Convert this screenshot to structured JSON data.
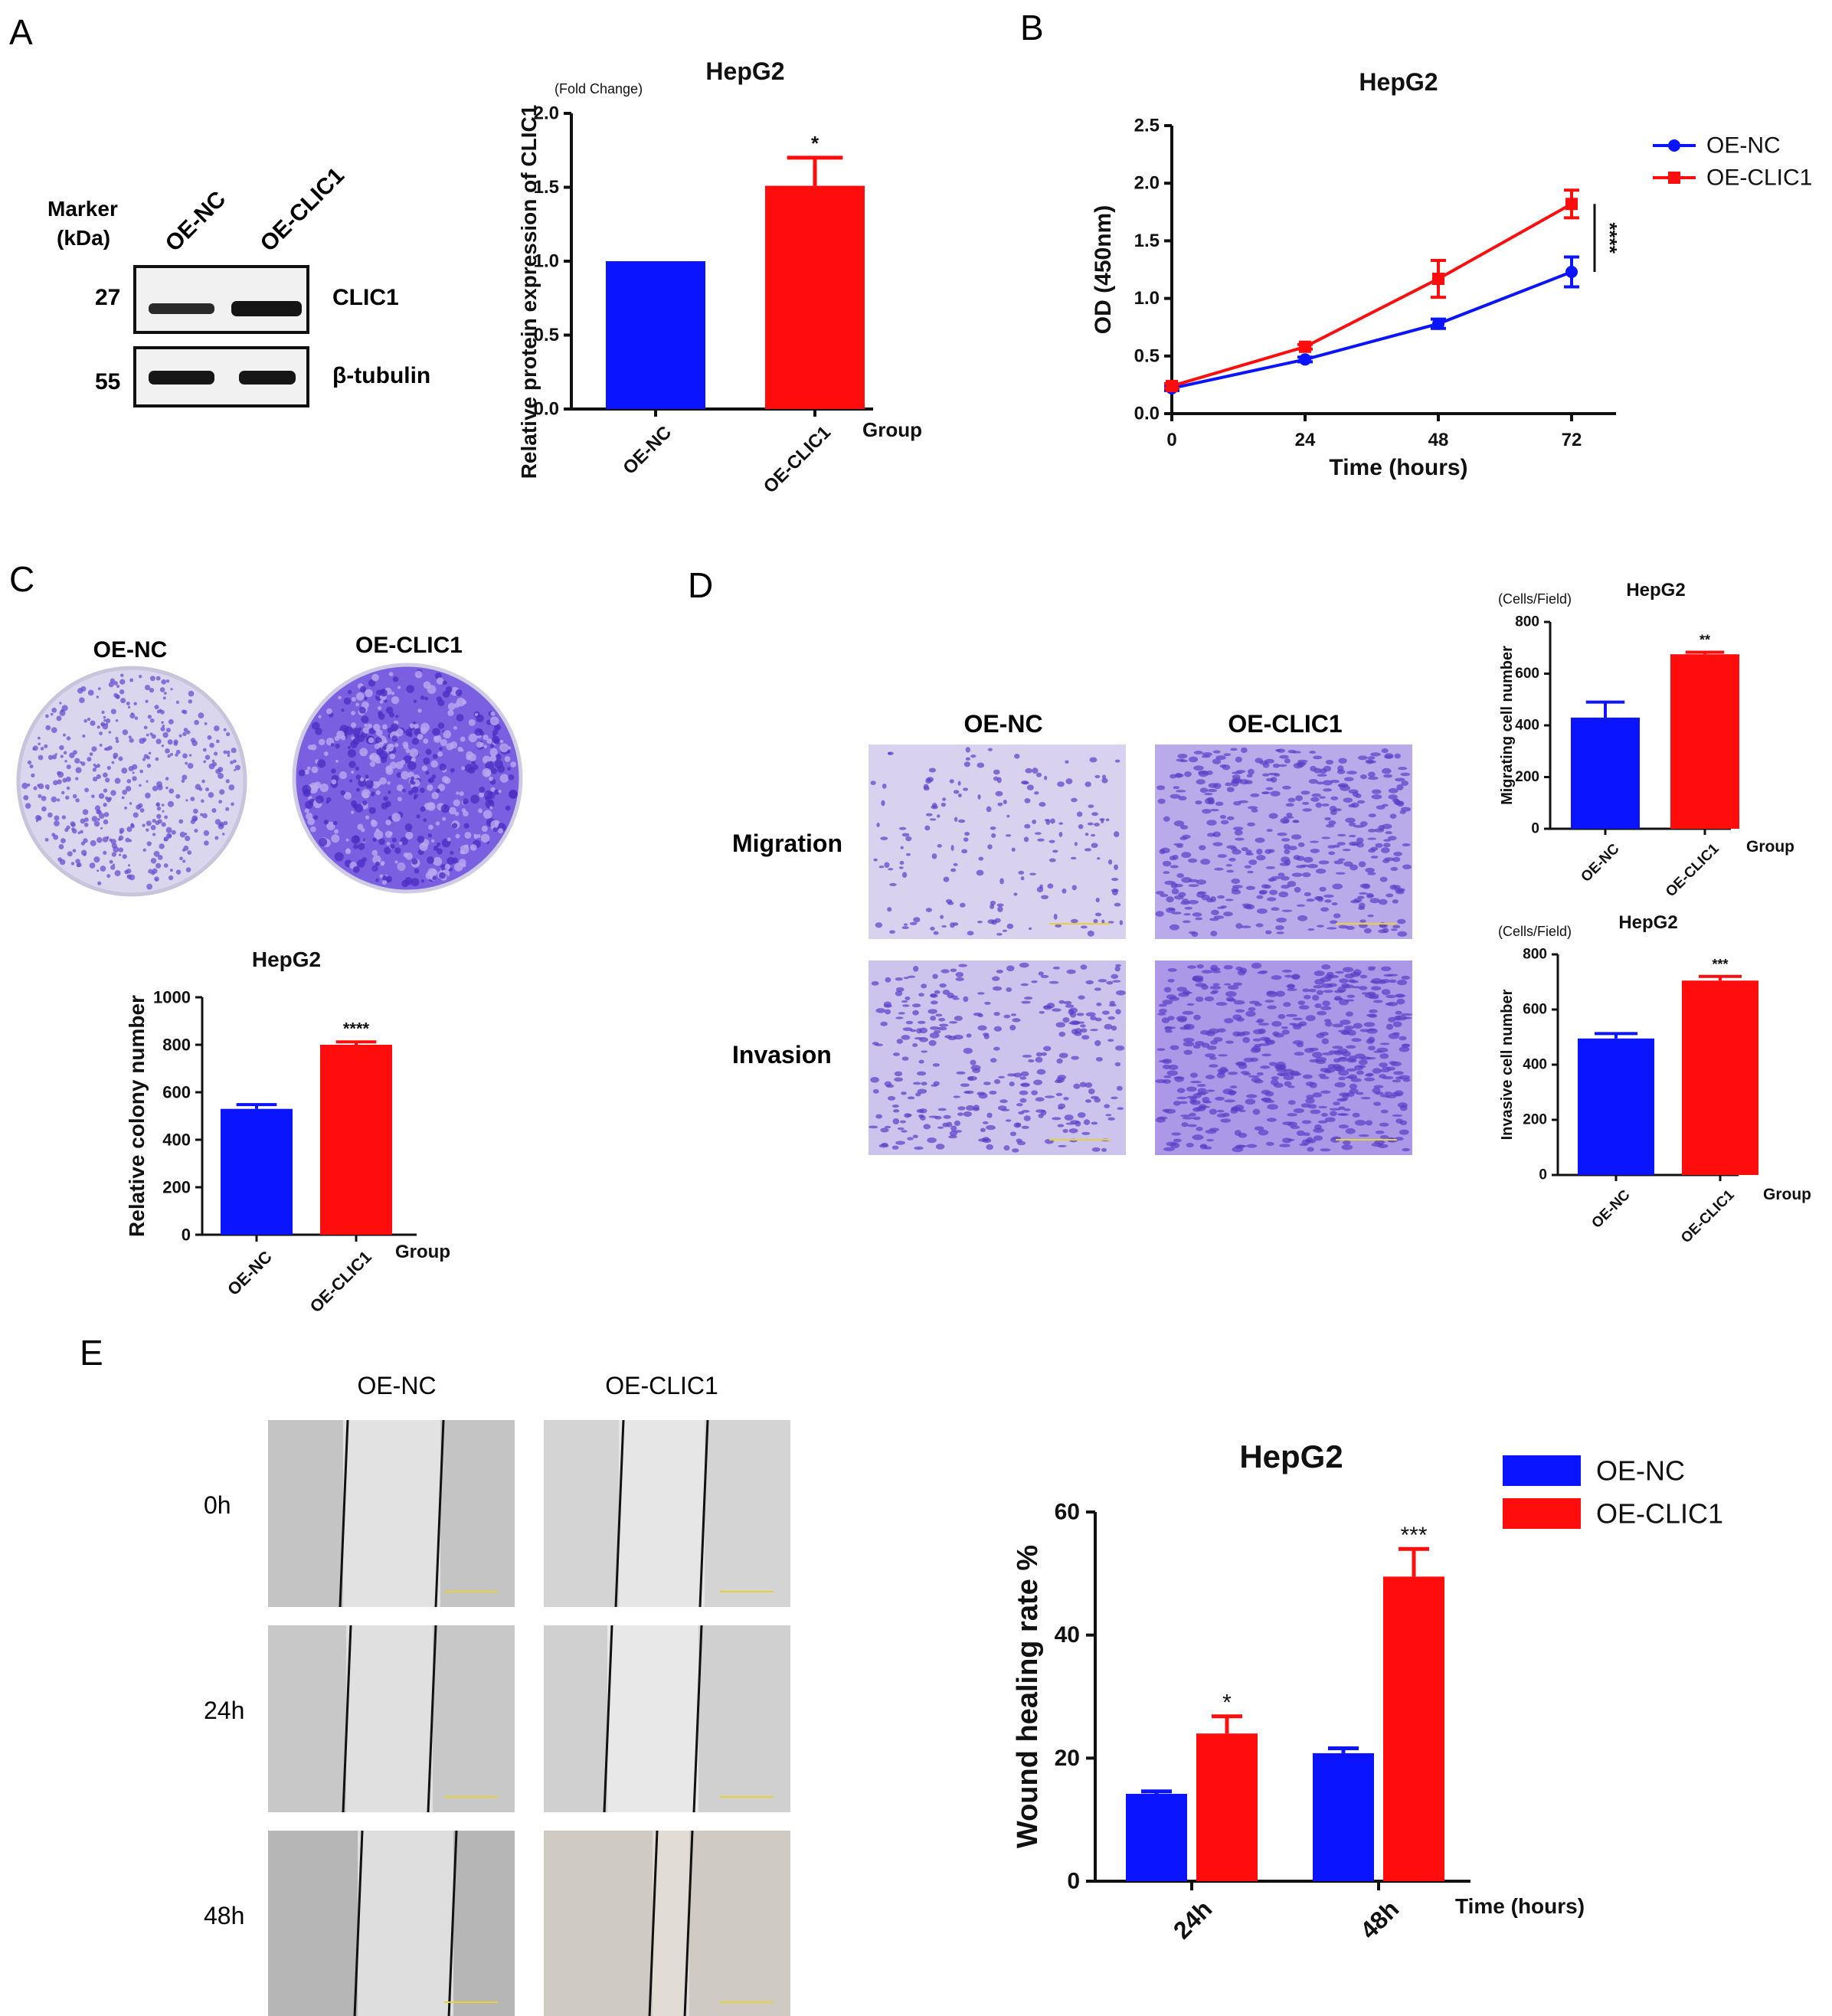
{
  "panel_labels": {
    "a": "A",
    "b": "B",
    "c": "C",
    "d": "D",
    "e": "E"
  },
  "colors": {
    "nc": "#0a14ff",
    "clic1": "#ff0d0d",
    "axis": "#111111",
    "gel_bg": "#f1f1f1",
    "band": "#1c1c1c",
    "crystal_violet": "#6a4fd2",
    "wound_bg": "#c9c9c9"
  },
  "western_blot": {
    "marker_label_1": "Marker",
    "marker_label_2": "(kDa)",
    "lanes": [
      "OE-NC",
      "OE-CLIC1"
    ],
    "rows": [
      {
        "kda": "27",
        "protein": "CLIC1"
      },
      {
        "kda": "55",
        "protein": "β-tubulin"
      }
    ]
  },
  "colony_images": {
    "labels": [
      "OE-NC",
      "OE-CLIC1"
    ]
  },
  "transwell_images": {
    "columns": [
      "OE-NC",
      "OE-CLIC1"
    ],
    "rows": [
      "Migration",
      "Invasion"
    ]
  },
  "wound_images": {
    "columns": [
      "OE-NC",
      "OE-CLIC1"
    ],
    "rows": [
      "0h",
      "24h",
      "48h"
    ]
  },
  "chart_data": [
    {
      "id": "a",
      "type": "bar",
      "title": "HepG2",
      "unit_label": "(Fold Change)",
      "ylabel": "Relative protein expression of CLIC1",
      "xlabel": "Group",
      "categories": [
        "OE-NC",
        "OE-CLIC1"
      ],
      "values": [
        1.0,
        1.51
      ],
      "errors": [
        0,
        0.19
      ],
      "significance": [
        "",
        "*"
      ],
      "ylim": [
        0,
        2.0
      ],
      "yticks": [
        "0.0",
        "0.5",
        "1.0",
        "1.5",
        "2.0"
      ]
    },
    {
      "id": "b",
      "type": "line",
      "title": "HepG2",
      "ylabel": "OD (450nm)",
      "xlabel": "Time (hours)",
      "x": [
        0,
        24,
        48,
        72
      ],
      "xticks": [
        "0",
        "24",
        "48",
        "72"
      ],
      "xlim": [
        0,
        80
      ],
      "ylim": [
        0,
        2.5
      ],
      "yticks": [
        "0.0",
        "0.5",
        "1.0",
        "1.5",
        "2.0",
        "2.5"
      ],
      "series": [
        {
          "name": "OE-NC",
          "values": [
            0.22,
            0.47,
            0.78,
            1.23
          ],
          "errors": [
            0.02,
            0.02,
            0.04,
            0.13
          ],
          "marker": "circle"
        },
        {
          "name": "OE-CLIC1",
          "values": [
            0.24,
            0.58,
            1.17,
            1.82
          ],
          "errors": [
            0.02,
            0.02,
            0.16,
            0.12
          ],
          "marker": "square"
        }
      ],
      "significance": "****",
      "legend": "top-right"
    },
    {
      "id": "c",
      "type": "bar",
      "title": "HepG2",
      "ylabel": "Relative colony number",
      "xlabel": "Group",
      "categories": [
        "OE-NC",
        "OE-CLIC1"
      ],
      "values": [
        530,
        800
      ],
      "errors": [
        18,
        12
      ],
      "significance": [
        "",
        "****"
      ],
      "ylim": [
        0,
        1000
      ],
      "yticks": [
        "0",
        "200",
        "400",
        "600",
        "800",
        "1000"
      ]
    },
    {
      "id": "d1",
      "type": "bar",
      "title": "HepG2",
      "unit_label": "(Cells/Field)",
      "ylabel": "Migrating cell number",
      "xlabel": "Group",
      "categories": [
        "OE-NC",
        "OE-CLIC1"
      ],
      "values": [
        430,
        675
      ],
      "errors": [
        60,
        8
      ],
      "significance": [
        "",
        "**"
      ],
      "ylim": [
        0,
        800
      ],
      "yticks": [
        "0",
        "200",
        "400",
        "600",
        "800"
      ]
    },
    {
      "id": "d2",
      "type": "bar",
      "title": "HepG2",
      "unit_label": "(Cells/Field)",
      "ylabel": "Invasive cell number",
      "xlabel": "Group",
      "categories": [
        "OE-NC",
        "OE-CLIC1"
      ],
      "values": [
        495,
        705
      ],
      "errors": [
        18,
        15
      ],
      "significance": [
        "",
        "***"
      ],
      "ylim": [
        0,
        800
      ],
      "yticks": [
        "0",
        "200",
        "400",
        "600",
        "800"
      ]
    },
    {
      "id": "e",
      "type": "bar",
      "title": "HepG2",
      "ylabel": "Wound healing rate %",
      "xlabel": "Time (hours)",
      "categories": [
        "24h",
        "48h"
      ],
      "series": [
        {
          "name": "OE-NC",
          "values": [
            14.2,
            20.8
          ],
          "errors": [
            0.4,
            0.8
          ]
        },
        {
          "name": "OE-CLIC1",
          "values": [
            24.0,
            49.5
          ],
          "errors": [
            2.8,
            4.5
          ]
        }
      ],
      "significance": [
        [
          "",
          "*"
        ],
        [
          "",
          "***"
        ]
      ],
      "ylim": [
        0,
        60
      ],
      "yticks": [
        "0",
        "20",
        "40",
        "60"
      ],
      "legend": "top-right"
    }
  ]
}
